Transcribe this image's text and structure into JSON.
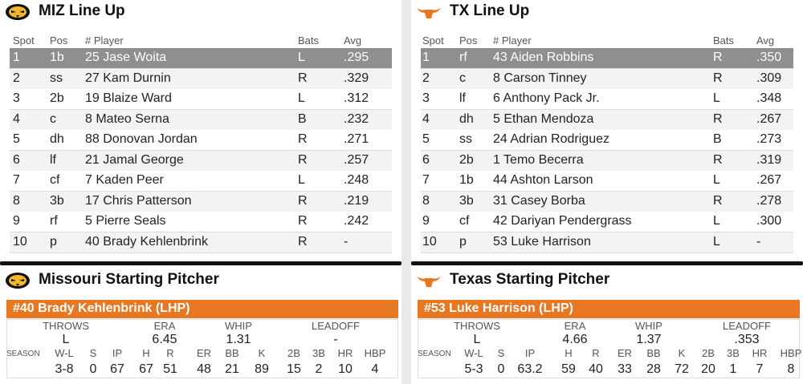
{
  "lineups": [
    {
      "title": "MIZ Line Up",
      "headers": [
        "Spot",
        "Pos",
        "# Player",
        "Bats",
        "Avg"
      ],
      "rows": [
        [
          "1",
          "1b",
          "25 Jase Woita",
          "L",
          ".295"
        ],
        [
          "2",
          "ss",
          "27 Kam Durnin",
          "R",
          ".329"
        ],
        [
          "3",
          "2b",
          "19 Blaize Ward",
          "L",
          ".312"
        ],
        [
          "4",
          "c",
          "8 Mateo Serna",
          "B",
          ".232"
        ],
        [
          "5",
          "dh",
          "88 Donovan Jordan",
          "R",
          ".271"
        ],
        [
          "6",
          "lf",
          "21 Jamal George",
          "R",
          ".257"
        ],
        [
          "7",
          "cf",
          "7 Kaden Peer",
          "L",
          ".248"
        ],
        [
          "8",
          "3b",
          "17 Chris Patterson",
          "R",
          ".219"
        ],
        [
          "9",
          "rf",
          "5 Pierre Seals",
          "R",
          ".242"
        ],
        [
          "10",
          "p",
          "40 Brady Kehlenbrink",
          "R",
          "-"
        ]
      ]
    },
    {
      "title": "TX Line Up",
      "headers": [
        "Spot",
        "Pos",
        "# Player",
        "Bats",
        "Avg"
      ],
      "rows": [
        [
          "1",
          "rf",
          "43 Aiden Robbins",
          "R",
          ".350"
        ],
        [
          "2",
          "c",
          "8 Carson Tinney",
          "R",
          ".309"
        ],
        [
          "3",
          "lf",
          "6 Anthony Pack Jr.",
          "L",
          ".348"
        ],
        [
          "4",
          "dh",
          "5 Ethan Mendoza",
          "R",
          ".267"
        ],
        [
          "5",
          "ss",
          "24 Adrian Rodriguez",
          "B",
          ".273"
        ],
        [
          "6",
          "2b",
          "1 Temo Becerra",
          "R",
          ".319"
        ],
        [
          "7",
          "1b",
          "44 Ashton Larson",
          "L",
          ".267"
        ],
        [
          "8",
          "3b",
          "31 Casey Borba",
          "R",
          ".278"
        ],
        [
          "9",
          "cf",
          "42 Dariyan Pendergrass",
          "L",
          ".300"
        ],
        [
          "10",
          "p",
          "53 Luke Harrison",
          "L",
          "-"
        ]
      ]
    }
  ],
  "pitchers": [
    {
      "title": "Missouri Starting Pitcher",
      "pitcher": "#40 Brady Kehlenbrink (LHP)",
      "top_headers": [
        "THROWS",
        "ERA",
        "WHIP",
        "LEADOFF"
      ],
      "top_values": [
        "L",
        "6.45",
        "1.31",
        "-"
      ],
      "season_label": "SEASON",
      "stat_headers": [
        "W-L",
        "S",
        "IP",
        "H",
        "R",
        "ER",
        "BB",
        "K",
        "2B",
        "3B",
        "HR",
        "HBP"
      ],
      "stat_values": [
        "3-8",
        "0",
        "67",
        "67",
        "51",
        "48",
        "21",
        "89",
        "15",
        "2",
        "10",
        "4"
      ]
    },
    {
      "title": "Texas Starting Pitcher",
      "pitcher": "#53 Luke Harrison (LHP)",
      "top_headers": [
        "THROWS",
        "ERA",
        "WHIP",
        "LEADOFF"
      ],
      "top_values": [
        "L",
        "4.66",
        "1.37",
        ".353"
      ],
      "season_label": "SEASON",
      "stat_headers": [
        "W-L",
        "S",
        "IP",
        "H",
        "R",
        "ER",
        "BB",
        "K",
        "2B",
        "3B",
        "HR",
        "HBP"
      ],
      "stat_values": [
        "5-3",
        "0",
        "63.2",
        "59",
        "40",
        "33",
        "28",
        "72",
        "20",
        "1",
        "7",
        "8"
      ]
    }
  ]
}
